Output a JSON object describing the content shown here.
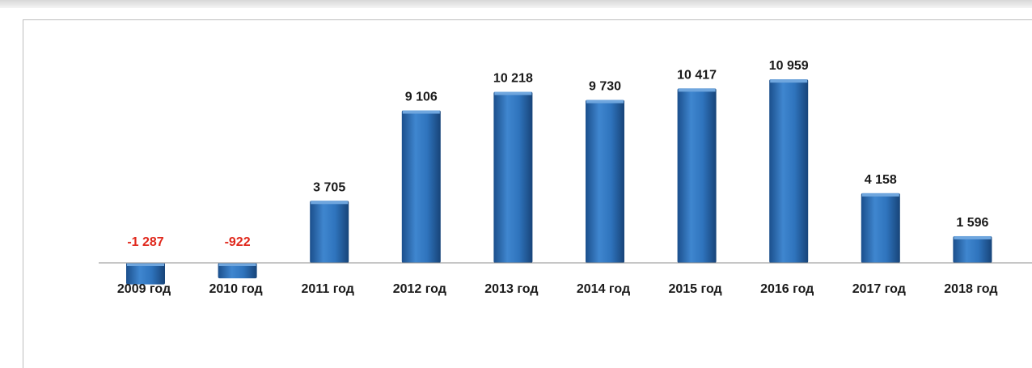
{
  "chart_data": {
    "type": "bar",
    "categories": [
      "2009 год",
      "2010 год",
      "2011 год",
      "2012 год",
      "2013 год",
      "2014 год",
      "2015 год",
      "2016 год",
      "2017 год",
      "2018 год"
    ],
    "values": [
      -1287,
      -922,
      3705,
      9106,
      10218,
      9730,
      10417,
      10959,
      4158,
      1596
    ],
    "value_labels": [
      "-1 287",
      "-922",
      "3 705",
      "9 106",
      "10 218",
      "9 730",
      "10 417",
      "10 959",
      "4 158",
      "1 596"
    ],
    "title": "",
    "xlabel": "",
    "ylabel": "",
    "grid": false,
    "legend": "none",
    "colors": {
      "bar": "#2a6fb8",
      "bar_dark": "#1b4f8c",
      "bar_light": "#6fa6de",
      "positive_label": "#1a1a1a",
      "negative_label": "#e0281c",
      "axis": "#8c8c8c"
    }
  }
}
